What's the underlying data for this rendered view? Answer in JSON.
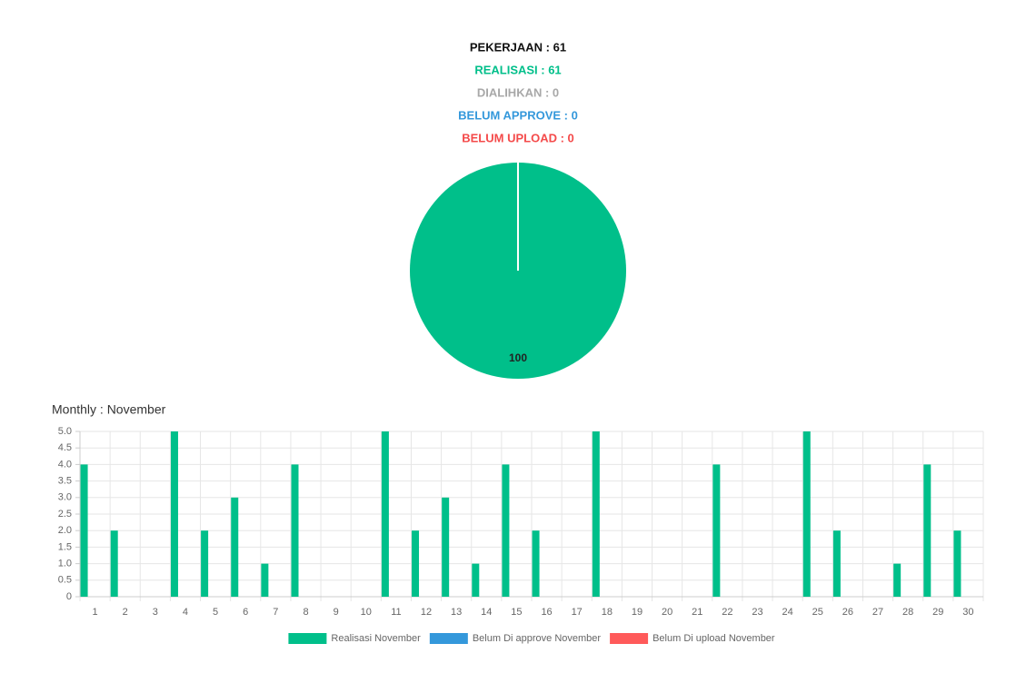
{
  "summary": [
    {
      "text": "PEKERJAAN : 61",
      "color": "#111111"
    },
    {
      "text": "REALISASI : 61",
      "color": "#00bf8a"
    },
    {
      "text": "DIALIHKAN : 0",
      "color": "#a8a8a8"
    },
    {
      "text": "BELUM APPROVE : 0",
      "color": "#3498db"
    },
    {
      "text": "BELUM UPLOAD : 0",
      "color": "#f44a4a"
    }
  ],
  "chart_data": [
    {
      "type": "pie",
      "values": [
        100
      ],
      "colors": [
        "#00bf8a"
      ]
    },
    {
      "type": "bar",
      "title": "Monthly : November",
      "categories": [
        "1",
        "2",
        "3",
        "4",
        "5",
        "6",
        "7",
        "8",
        "9",
        "10",
        "11",
        "12",
        "13",
        "14",
        "15",
        "16",
        "17",
        "18",
        "19",
        "20",
        "21",
        "22",
        "23",
        "24",
        "25",
        "26",
        "27",
        "28",
        "29",
        "30"
      ],
      "series": [
        {
          "name": "Realisasi November",
          "color": "#00bf8a",
          "values": [
            4,
            2,
            0,
            5,
            2,
            3,
            1,
            4,
            0,
            0,
            5,
            2,
            3,
            1,
            4,
            2,
            0,
            5,
            0,
            0,
            0,
            4,
            0,
            0,
            5,
            2,
            0,
            1,
            4,
            2
          ]
        },
        {
          "name": "Belum Di approve November",
          "color": "#3498db",
          "values": [
            0,
            0,
            0,
            0,
            0,
            0,
            0,
            0,
            0,
            0,
            0,
            0,
            0,
            0,
            0,
            0,
            0,
            0,
            0,
            0,
            0,
            0,
            0,
            0,
            0,
            0,
            0,
            0,
            0,
            0
          ]
        },
        {
          "name": "Belum Di upload November",
          "color": "#ff5a5a",
          "values": [
            0,
            0,
            0,
            0,
            0,
            0,
            0,
            0,
            0,
            0,
            0,
            0,
            0,
            0,
            0,
            0,
            0,
            0,
            0,
            0,
            0,
            0,
            0,
            0,
            0,
            0,
            0,
            0,
            0,
            0
          ]
        }
      ],
      "ylim": [
        0,
        5
      ],
      "yticks": [
        0,
        0.5,
        {
          "value": 1,
          "label": "1.0"
        },
        1.5,
        {
          "value": 2,
          "label": "2.0"
        },
        2.5,
        {
          "value": 3,
          "label": "3.0"
        },
        3.5,
        {
          "value": 4,
          "label": "4.0"
        },
        4.5,
        {
          "value": 5,
          "label": "5.0"
        }
      ],
      "grid": true,
      "legend": "bottom"
    }
  ]
}
